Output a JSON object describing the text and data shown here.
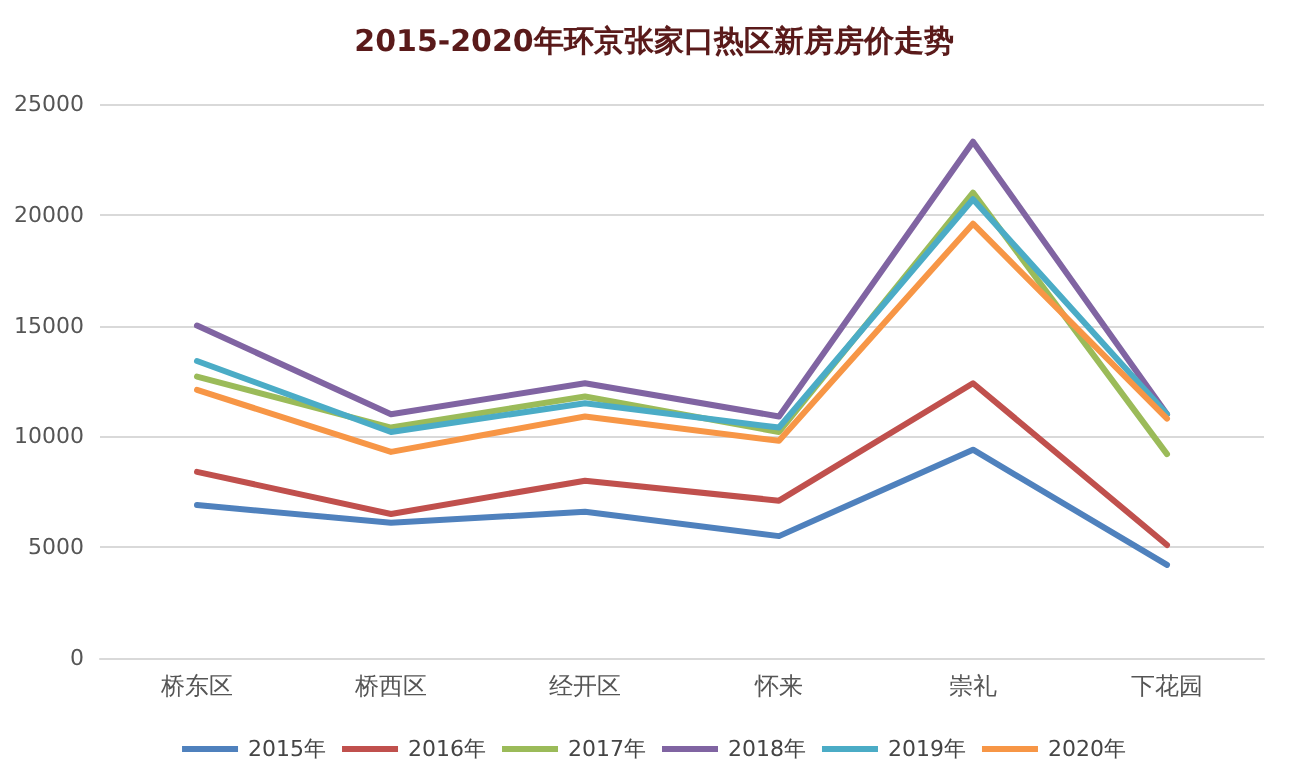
{
  "chart_data": {
    "type": "line",
    "title": "2015-2020年环京张家口热区新房房价走势",
    "categories": [
      "桥东区",
      "桥西区",
      "经开区",
      "怀来",
      "崇礼",
      "下花园"
    ],
    "series": [
      {
        "name": "2015年",
        "color": "#4f81bd",
        "values": [
          6900,
          6100,
          6600,
          5500,
          9400,
          4200
        ]
      },
      {
        "name": "2016年",
        "color": "#c0504d",
        "values": [
          8400,
          6500,
          8000,
          7100,
          12400,
          5100
        ]
      },
      {
        "name": "2017年",
        "color": "#9bbb59",
        "values": [
          12700,
          10400,
          11800,
          10200,
          21000,
          9200
        ]
      },
      {
        "name": "2018年",
        "color": "#8064a2",
        "values": [
          15000,
          11000,
          12400,
          10900,
          23300,
          11000
        ]
      },
      {
        "name": "2019年",
        "color": "#4bacc6",
        "values": [
          13400,
          10200,
          11500,
          10400,
          20700,
          11000
        ]
      },
      {
        "name": "2020年",
        "color": "#f79646",
        "values": [
          12100,
          9300,
          10900,
          9800,
          19600,
          10800
        ]
      }
    ],
    "ylim": [
      0,
      25000
    ],
    "yticks": [
      0,
      5000,
      10000,
      15000,
      20000,
      25000
    ],
    "grid": "y",
    "legend": "bottom",
    "marker": "none",
    "line_style": "solid"
  }
}
